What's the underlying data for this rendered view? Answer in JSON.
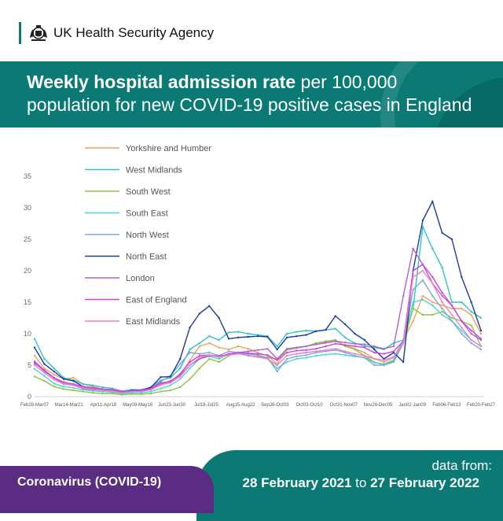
{
  "header": {
    "agency": "UK Health Security Agency",
    "title_bold": "Weekly hospital admission rate",
    "title_rest_1": " per 100,000",
    "title_rest_2": "population for new COVID-19 positive cases in England"
  },
  "footer": {
    "label": "Coronavirus (COVID-19)",
    "data_from": "data from:",
    "date_start": "28 February 2021",
    "date_to": " to ",
    "date_end": "27 February 2022"
  },
  "colors": {
    "teal": "#0b7a75",
    "purple": "#5a2d82"
  },
  "chart_data": {
    "type": "line",
    "title": "Weekly hospital admission rate per 100,000 population for new COVID-19 positive cases in England",
    "xlabel": "",
    "ylabel": "",
    "ylim": [
      0,
      35
    ],
    "yticks": [
      0,
      5,
      10,
      15,
      20,
      25,
      30,
      35
    ],
    "x_tick_labels": [
      "Feb28-Mar07",
      "Mar14-Mar21",
      "Apr11-Apr18",
      "May09-May16",
      "Jun23-Jun30",
      "Jul18-Jul25",
      "Aug15-Aug22",
      "Sep26-Oct03",
      "Oct03-Oct10",
      "Oct31-Nov07",
      "Nov28-Dec05",
      "Jan02-Jan09",
      "Feb06-Feb13",
      "Feb20-Feb27"
    ],
    "legend_position": "top-left",
    "series": [
      {
        "name": "Yorkshire and Humber",
        "color": "#f0a060",
        "values": [
          6.5,
          4.5,
          3.5,
          2.8,
          3,
          2,
          1.6,
          1.2,
          1.1,
          0.7,
          1,
          0.9,
          1.3,
          1.8,
          2.4,
          3.4,
          5.8,
          8,
          8.5,
          7.8,
          7.5,
          8,
          7.6,
          7,
          6.5,
          5.2,
          7.5,
          7.8,
          8,
          8.3,
          8.5,
          8.8,
          8.2,
          7.6,
          7,
          6,
          5.5,
          6.2,
          9,
          12,
          16,
          15,
          14.5,
          14,
          14,
          13,
          10
        ]
      },
      {
        "name": "West Midlands",
        "color": "#2ec4c4",
        "values": [
          9.2,
          6,
          4.5,
          3,
          2.6,
          2,
          1.8,
          1.5,
          1.3,
          0.9,
          1.1,
          1.1,
          1.5,
          2.6,
          3,
          4.5,
          7.5,
          8.5,
          9.6,
          9,
          10.2,
          10.3,
          10,
          9.8,
          9.6,
          8,
          10,
          10.3,
          10.5,
          10.4,
          10.6,
          10.8,
          9.4,
          8.5,
          8,
          7.8,
          7.5,
          8.5,
          9,
          14,
          27,
          23.5,
          20.5,
          15,
          15,
          13.5,
          12.5
        ]
      },
      {
        "name": "South West",
        "color": "#8cc63f",
        "values": [
          3.2,
          2.5,
          1.6,
          1.2,
          1,
          0.8,
          0.6,
          0.5,
          0.5,
          0.3,
          0.4,
          0.4,
          0.5,
          0.8,
          1,
          1.5,
          2.8,
          4.5,
          6,
          5.5,
          6.5,
          7,
          6.5,
          6.4,
          6.2,
          6,
          7.4,
          7.7,
          8,
          8.5,
          8.8,
          9,
          8,
          7.5,
          6.5,
          5.5,
          5,
          5.7,
          8.5,
          14,
          13,
          13,
          13.5,
          12.5,
          12,
          11.3,
          8
        ]
      },
      {
        "name": "South East",
        "color": "#49d3dc",
        "values": [
          4.4,
          3.3,
          2.1,
          1.6,
          1.4,
          1.1,
          0.9,
          0.8,
          0.7,
          0.5,
          0.6,
          0.6,
          0.8,
          1.3,
          1.8,
          2.8,
          4.5,
          6,
          6.4,
          6,
          6.8,
          6.9,
          6.6,
          6.3,
          6,
          4.5,
          5.5,
          6,
          6.2,
          6.5,
          6.7,
          6.8,
          6.6,
          6.4,
          6.2,
          5.4,
          5.2,
          5.8,
          9,
          15,
          15.4,
          14.5,
          13,
          12,
          10.5,
          9,
          8
        ]
      },
      {
        "name": "North West",
        "color": "#7fa7d6",
        "values": [
          5.5,
          4,
          3,
          2.2,
          2,
          1.5,
          1.3,
          1.1,
          1,
          0.7,
          0.8,
          0.9,
          1.4,
          2.4,
          3.3,
          5.2,
          7,
          6.8,
          7,
          6.5,
          7.2,
          7,
          6.8,
          6.6,
          6.2,
          4,
          6,
          6.4,
          6.6,
          7,
          7.2,
          7.4,
          7,
          6.5,
          6.2,
          5,
          5,
          5.5,
          8.5,
          17,
          18.5,
          16,
          14,
          12,
          10,
          8.5,
          7.5
        ]
      },
      {
        "name": "North East",
        "color": "#1a3aa6",
        "values": [
          7.8,
          5.2,
          4,
          2.8,
          2.5,
          1.6,
          1.4,
          1.2,
          1.1,
          0.7,
          1,
          1,
          1.5,
          3.1,
          3.2,
          6,
          11,
          13.2,
          14.4,
          12.5,
          9.2,
          9.4,
          9.5,
          9.6,
          9.5,
          7.5,
          9.4,
          9.6,
          9.8,
          10.4,
          10.6,
          12.8,
          11.5,
          10,
          9,
          7.5,
          6,
          7,
          5.5,
          20,
          28,
          31,
          26,
          25,
          19,
          15,
          10.5
        ]
      },
      {
        "name": "London",
        "color": "#b05fd6",
        "values": [
          5.6,
          4.2,
          3,
          2,
          1.8,
          1.3,
          1.1,
          1,
          0.9,
          0.7,
          0.8,
          0.9,
          1.2,
          2,
          2.5,
          3.4,
          5,
          6,
          6.5,
          6.5,
          6.6,
          7,
          7.2,
          7.4,
          7.6,
          6,
          7.6,
          7.8,
          8,
          8.3,
          8.6,
          8.8,
          8.6,
          8.4,
          8.3,
          8,
          7.6,
          8,
          16,
          23.5,
          21,
          18,
          16,
          14.5,
          12,
          10,
          9
        ]
      },
      {
        "name": "East of England",
        "color": "#d040e0",
        "values": [
          5.3,
          4.2,
          3,
          2.3,
          2,
          1.6,
          1.4,
          1.2,
          1.1,
          0.8,
          0.9,
          1,
          1.3,
          2.2,
          2.4,
          3.6,
          5.5,
          6.5,
          6.6,
          6.3,
          6.8,
          7,
          6.9,
          6.8,
          6.6,
          5.8,
          7,
          7.3,
          7.4,
          7.6,
          8,
          8.4,
          8.2,
          8,
          7.8,
          7,
          6.8,
          7.2,
          8.8,
          20,
          21,
          19,
          16.5,
          14.5,
          12,
          10.5,
          9.2
        ]
      },
      {
        "name": "East Midlands",
        "color": "#ee7ec4",
        "values": [
          5,
          3.8,
          2.7,
          2,
          1.8,
          1.4,
          1.2,
          1,
          0.9,
          0.6,
          0.8,
          0.8,
          1.1,
          1.9,
          2.2,
          3.2,
          5,
          6.2,
          6.6,
          6.3,
          6.6,
          6.8,
          6.5,
          6.3,
          6,
          5,
          6.5,
          6.8,
          7,
          7.2,
          7.4,
          7.6,
          7.2,
          6.8,
          6.5,
          6,
          5.8,
          6.3,
          8.5,
          19,
          20,
          18,
          15,
          13,
          11,
          9,
          8
        ]
      }
    ]
  }
}
